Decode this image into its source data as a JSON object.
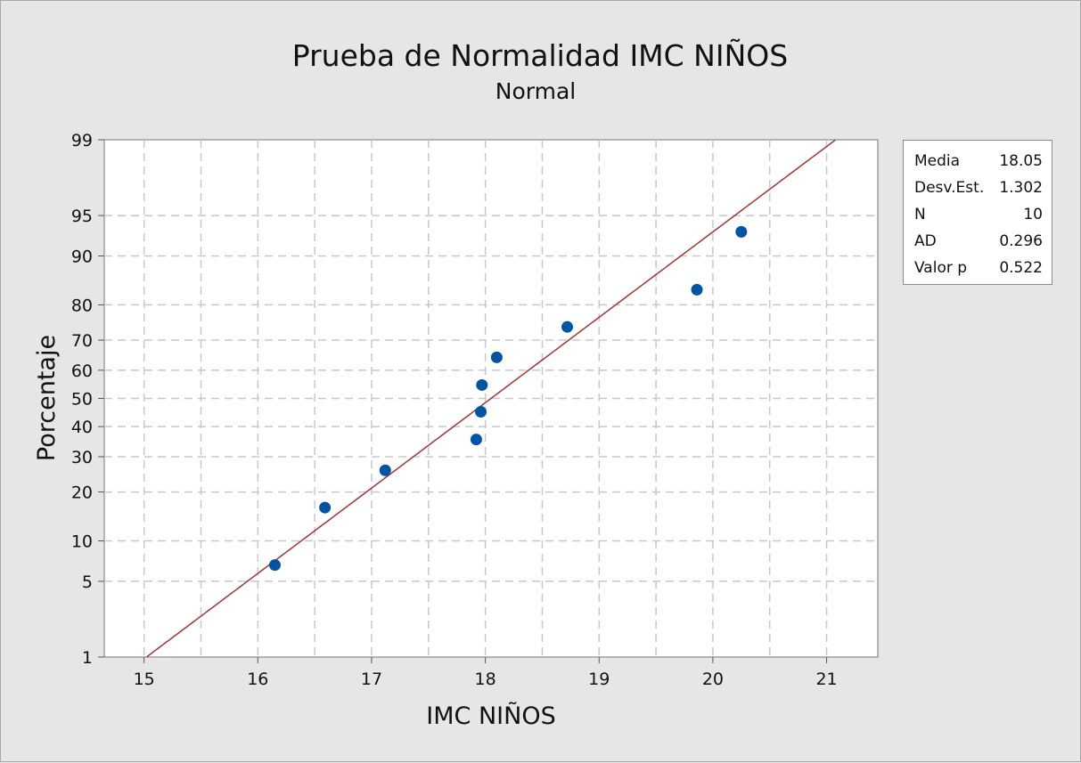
{
  "chart_data": {
    "type": "scatter",
    "title": "Prueba de Normalidad IMC NIÑOS",
    "subtitle": "Normal",
    "xlabel": "IMC NIÑOS",
    "ylabel": "Porcentaje",
    "xlim": [
      14.65,
      21.45
    ],
    "ylim": [
      1,
      99
    ],
    "y_scale": "normal-probability",
    "grid": true,
    "x_ticks": [
      "15",
      "16",
      "17",
      "18",
      "19",
      "20",
      "21"
    ],
    "y_ticks": [
      "1",
      "5",
      "10",
      "20",
      "30",
      "40",
      "50",
      "60",
      "70",
      "80",
      "90",
      "95",
      "99"
    ],
    "points": [
      {
        "x": 16.15,
        "y": 6.7
      },
      {
        "x": 16.59,
        "y": 16.3
      },
      {
        "x": 17.12,
        "y": 25.9
      },
      {
        "x": 17.92,
        "y": 35.6
      },
      {
        "x": 17.96,
        "y": 45.2
      },
      {
        "x": 17.97,
        "y": 54.8
      },
      {
        "x": 18.1,
        "y": 64.4
      },
      {
        "x": 18.72,
        "y": 74.0
      },
      {
        "x": 19.86,
        "y": 83.6
      },
      {
        "x": 20.25,
        "y": 93.3
      }
    ],
    "fit_line": {
      "mean": 18.05,
      "stdev": 1.302
    },
    "colors": {
      "points": "#0054a6",
      "fit_line": "#a83232",
      "grid": "#c8c8c8",
      "plot_bg": "#ffffff"
    }
  },
  "stats": [
    {
      "label": "Media",
      "value": "18.05"
    },
    {
      "label": "Desv.Est.",
      "value": "1.302"
    },
    {
      "label": "N",
      "value": "10"
    },
    {
      "label": "AD",
      "value": "0.296"
    },
    {
      "label": "Valor p",
      "value": "0.522"
    }
  ]
}
